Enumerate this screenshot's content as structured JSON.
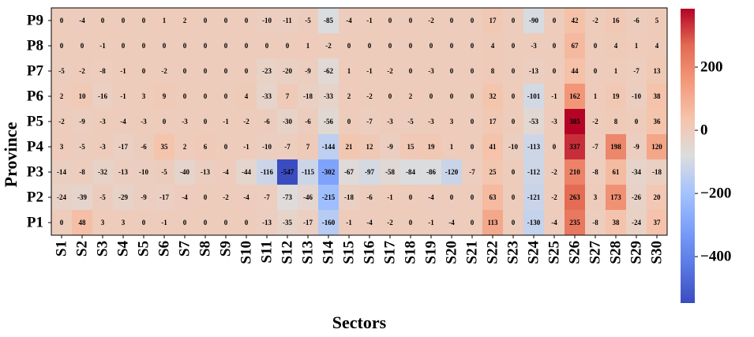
{
  "chart_data": {
    "type": "heatmap",
    "x_label": "Sectors",
    "y_label": "Province",
    "colormap": "coolwarm",
    "x_categories": [
      "S1",
      "S2",
      "S3",
      "S4",
      "S5",
      "S6",
      "S7",
      "S8",
      "S9",
      "S10",
      "S11",
      "S12",
      "S13",
      "S14",
      "S15",
      "S16",
      "S17",
      "S18",
      "S19",
      "S20",
      "S21",
      "S22",
      "S23",
      "S24",
      "S25",
      "S26",
      "S27",
      "S28",
      "S29",
      "S30"
    ],
    "y_categories": [
      "P9",
      "P8",
      "P7",
      "P6",
      "P5",
      "P4",
      "P3",
      "P2",
      "P1"
    ],
    "values": [
      [
        0,
        -4,
        0,
        0,
        0,
        1,
        2,
        0,
        0,
        0,
        -10,
        -11,
        -5,
        -85,
        -4,
        -1,
        0,
        0,
        -2,
        0,
        0,
        17,
        0,
        -90,
        0,
        42,
        -2,
        16,
        -6,
        5
      ],
      [
        0,
        0,
        -1,
        0,
        0,
        0,
        0,
        0,
        0,
        0,
        0,
        0,
        1,
        -2,
        0,
        0,
        0,
        0,
        0,
        0,
        0,
        4,
        0,
        -3,
        0,
        67,
        0,
        4,
        1,
        4
      ],
      [
        -5,
        -2,
        -8,
        -1,
        0,
        -2,
        0,
        0,
        0,
        0,
        -23,
        -20,
        -9,
        -62,
        1,
        -1,
        -2,
        0,
        -3,
        0,
        0,
        8,
        0,
        -13,
        0,
        44,
        0,
        1,
        -7,
        13
      ],
      [
        2,
        10,
        -16,
        -1,
        3,
        9,
        0,
        0,
        0,
        4,
        -33,
        7,
        -18,
        -33,
        2,
        -2,
        0,
        2,
        0,
        0,
        0,
        32,
        0,
        -101,
        -1,
        162,
        1,
        19,
        -10,
        38
      ],
      [
        -2,
        -9,
        -3,
        -4,
        -3,
        0,
        -3,
        0,
        -1,
        -2,
        -6,
        -30,
        -6,
        -56,
        0,
        -7,
        -3,
        -5,
        -3,
        3,
        0,
        17,
        0,
        -53,
        -3,
        385,
        -2,
        8,
        0,
        36
      ],
      [
        3,
        -5,
        -3,
        -17,
        -6,
        35,
        2,
        6,
        0,
        -1,
        -10,
        -7,
        7,
        -144,
        21,
        12,
        -9,
        15,
        19,
        1,
        0,
        41,
        -10,
        -113,
        0,
        337,
        -7,
        198,
        -9,
        120
      ],
      [
        -14,
        -8,
        -32,
        -13,
        -10,
        -5,
        -40,
        -13,
        -4,
        -44,
        -116,
        -547,
        -115,
        -302,
        -67,
        -97,
        -58,
        -84,
        -86,
        -120,
        -7,
        25,
        0,
        -112,
        -2,
        210,
        -8,
        61,
        -34,
        -18
      ],
      [
        -24,
        -39,
        -5,
        -29,
        -9,
        -17,
        -4,
        0,
        -2,
        -4,
        -7,
        -73,
        -46,
        -215,
        -18,
        -6,
        -1,
        0,
        -4,
        0,
        0,
        63,
        0,
        -121,
        -2,
        263,
        3,
        173,
        -26,
        20
      ],
      [
        0,
        48,
        3,
        3,
        0,
        -1,
        0,
        0,
        0,
        0,
        -13,
        -35,
        -17,
        -160,
        -1,
        -4,
        -2,
        0,
        -1,
        -4,
        0,
        113,
        0,
        -130,
        -4,
        235,
        -8,
        38,
        -24,
        37
      ]
    ],
    "zlim": [
      -547,
      385
    ],
    "zticks": [
      {
        "value": -400,
        "label": "−400"
      },
      {
        "value": -200,
        "label": "−200"
      },
      0,
      200
    ]
  }
}
